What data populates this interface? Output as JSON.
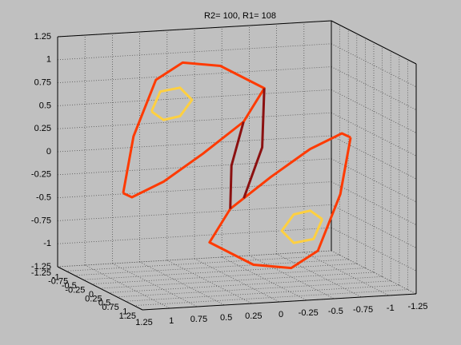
{
  "chart_data": {
    "type": "line3d",
    "title": "R2= 100, R1= 108",
    "xlim": [
      -1.25,
      1.25
    ],
    "ylim": [
      -1.25,
      1.25
    ],
    "zlim": [
      -1.25,
      1.25
    ],
    "xticks": [
      -1.25,
      -1,
      -0.75,
      -0.5,
      -0.25,
      0,
      0.25,
      0.5,
      0.75,
      1,
      1.25
    ],
    "yticks": [
      -1.25,
      -1,
      -0.75,
      -0.5,
      -0.25,
      0,
      0.25,
      0.5,
      0.75,
      1,
      1.25
    ],
    "zticks": [
      -1.25,
      -1,
      -0.75,
      -0.5,
      -0.25,
      0,
      0.25,
      0.5,
      0.75,
      1,
      1.25
    ],
    "grid": true,
    "series": [
      {
        "color": "#ff3a00",
        "x": [
          1.07,
          0.96,
          0.74,
          0.48,
          0.12,
          -0.25,
          -0.03,
          0.34,
          0.7,
          0.99,
          1.07
        ],
        "y": [
          0.1,
          0.05,
          0,
          -0.05,
          -0.1,
          0,
          0.1,
          0.1,
          0.1,
          0.1,
          0.1
        ],
        "z": [
          -0.21,
          0.39,
          0.98,
          1.14,
          1.07,
          0.82,
          0.49,
          0.17,
          -0.11,
          -0.26,
          -0.21
        ]
      },
      {
        "color": "#ffd040",
        "x": [
          0.78,
          0.7,
          0.52,
          0.41,
          0.52,
          0.67,
          0.78
        ],
        "y": [
          0,
          0,
          0,
          0,
          0,
          0,
          0
        ],
        "z": [
          0.64,
          0.85,
          0.88,
          0.74,
          0.57,
          0.54,
          0.64
        ]
      },
      {
        "color": "#ff3a00",
        "x": [
          -1.07,
          -0.96,
          -0.74,
          -0.48,
          -0.12,
          0.25,
          0.03,
          -0.34,
          -0.7,
          -0.99,
          -1.07
        ],
        "y": [
          -0.1,
          -0.05,
          0,
          0.05,
          0.1,
          0,
          -0.1,
          -0.1,
          -0.1,
          -0.1,
          -0.1
        ],
        "z": [
          0.21,
          -0.39,
          -0.98,
          -1.14,
          -1.07,
          -0.82,
          -0.49,
          -0.17,
          0.11,
          0.26,
          0.21
        ]
      },
      {
        "color": "#ffd040",
        "x": [
          -0.78,
          -0.7,
          -0.52,
          -0.41,
          -0.52,
          -0.67,
          -0.78
        ],
        "y": [
          0,
          0,
          0,
          0,
          0,
          0,
          0
        ],
        "z": [
          -0.64,
          -0.85,
          -0.88,
          -0.74,
          -0.57,
          -0.54,
          -0.64
        ]
      },
      {
        "color": "#8b1010",
        "x": [
          -0.03,
          0.05,
          0.03
        ],
        "y": [
          0.1,
          0,
          -0.1
        ],
        "z": [
          0.49,
          0,
          -0.49
        ]
      },
      {
        "color": "#8b1010",
        "x": [
          -0.25,
          -0.2,
          0.03
        ],
        "y": [
          0,
          0.1,
          0.3
        ],
        "z": [
          0.82,
          0.2,
          -0.3
        ]
      }
    ]
  }
}
